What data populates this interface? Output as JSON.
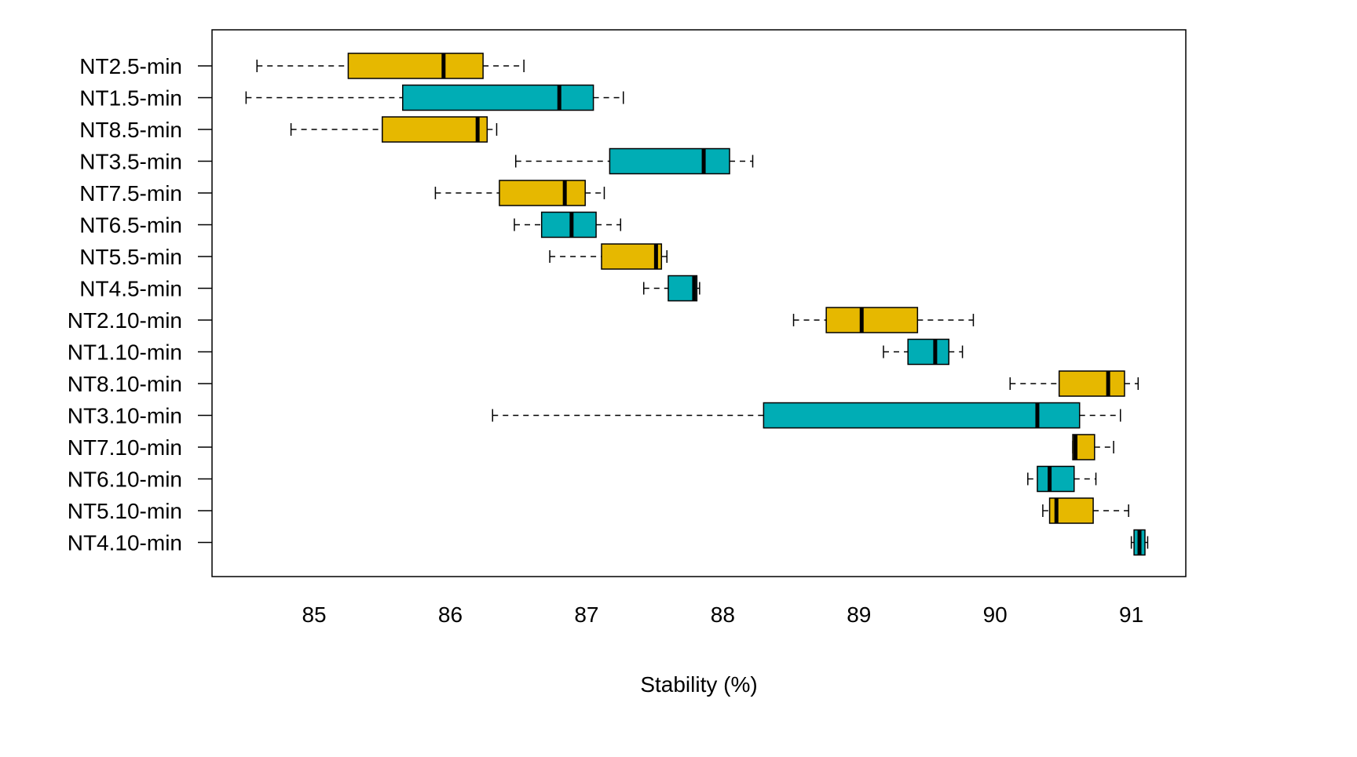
{
  "chart_data": {
    "type": "boxplot",
    "orientation": "horizontal",
    "xlabel": "Stability (%)",
    "ylabel": "",
    "title": "",
    "xlim": [
      84.25,
      91.4
    ],
    "xticks": [
      85,
      86,
      87,
      88,
      89,
      90,
      91
    ],
    "grid": false,
    "legend": "none",
    "colors": {
      "gold": "#E6B800",
      "teal": "#00ADB5"
    },
    "series": [
      {
        "name": "NT2.5-min",
        "color": "gold",
        "whisker_low": 84.58,
        "q1": 85.25,
        "median": 85.95,
        "q3": 86.24,
        "whisker_high": 86.54
      },
      {
        "name": "NT1.5-min",
        "color": "teal",
        "whisker_low": 84.5,
        "q1": 85.65,
        "median": 86.8,
        "q3": 87.05,
        "whisker_high": 87.27
      },
      {
        "name": "NT8.5-min",
        "color": "gold",
        "whisker_low": 84.83,
        "q1": 85.5,
        "median": 86.2,
        "q3": 86.27,
        "whisker_high": 86.34
      },
      {
        "name": "NT3.5-min",
        "color": "teal",
        "whisker_low": 86.48,
        "q1": 87.17,
        "median": 87.86,
        "q3": 88.05,
        "whisker_high": 88.22
      },
      {
        "name": "NT7.5-min",
        "color": "gold",
        "whisker_low": 85.89,
        "q1": 86.36,
        "median": 86.84,
        "q3": 86.99,
        "whisker_high": 87.13
      },
      {
        "name": "NT6.5-min",
        "color": "teal",
        "whisker_low": 86.47,
        "q1": 86.67,
        "median": 86.89,
        "q3": 87.07,
        "whisker_high": 87.25
      },
      {
        "name": "NT5.5-min",
        "color": "gold",
        "whisker_low": 86.73,
        "q1": 87.11,
        "median": 87.51,
        "q3": 87.55,
        "whisker_high": 87.59
      },
      {
        "name": "NT4.5-min",
        "color": "teal",
        "whisker_low": 87.42,
        "q1": 87.6,
        "median": 87.79,
        "q3": 87.81,
        "whisker_high": 87.83
      },
      {
        "name": "NT2.10-min",
        "color": "gold",
        "whisker_low": 88.52,
        "q1": 88.76,
        "median": 89.02,
        "q3": 89.43,
        "whisker_high": 89.84
      },
      {
        "name": "NT1.10-min",
        "color": "teal",
        "whisker_low": 89.18,
        "q1": 89.36,
        "median": 89.56,
        "q3": 89.66,
        "whisker_high": 89.76
      },
      {
        "name": "NT8.10-min",
        "color": "gold",
        "whisker_low": 90.11,
        "q1": 90.47,
        "median": 90.83,
        "q3": 90.95,
        "whisker_high": 91.05
      },
      {
        "name": "NT3.10-min",
        "color": "teal",
        "whisker_low": 86.31,
        "q1": 88.3,
        "median": 90.31,
        "q3": 90.62,
        "whisker_high": 90.92
      },
      {
        "name": "NT7.10-min",
        "color": "gold",
        "whisker_low": 90.57,
        "q1": 90.57,
        "median": 90.59,
        "q3": 90.73,
        "whisker_high": 90.87
      },
      {
        "name": "NT6.10-min",
        "color": "teal",
        "whisker_low": 90.24,
        "q1": 90.31,
        "median": 90.4,
        "q3": 90.58,
        "whisker_high": 90.74
      },
      {
        "name": "NT5.10-min",
        "color": "gold",
        "whisker_low": 90.35,
        "q1": 90.4,
        "median": 90.45,
        "q3": 90.72,
        "whisker_high": 90.98
      },
      {
        "name": "NT4.10-min",
        "color": "teal",
        "whisker_low": 91.0,
        "q1": 91.02,
        "median": 91.06,
        "q3": 91.1,
        "whisker_high": 91.12
      }
    ]
  }
}
